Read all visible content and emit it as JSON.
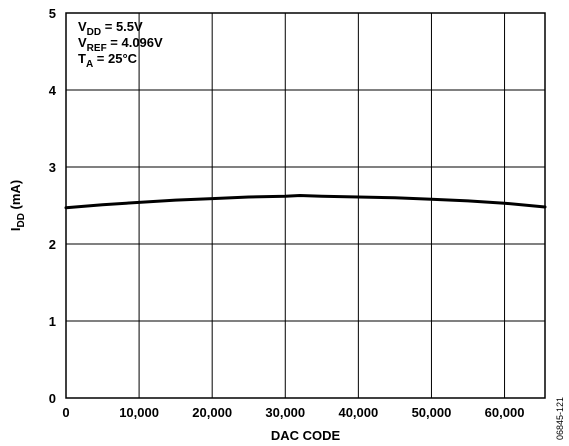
{
  "chart_data": {
    "type": "line",
    "xlabel": "DAC CODE",
    "ylabel": {
      "main": "I",
      "sub": "DD",
      "unit": " (mA)"
    },
    "xlim": [
      0,
      65535
    ],
    "ylim": [
      0,
      5
    ],
    "xticks": [
      {
        "value": 0,
        "label": "0"
      },
      {
        "value": 10000,
        "label": "10,000"
      },
      {
        "value": 20000,
        "label": "20,000"
      },
      {
        "value": 30000,
        "label": "30,000"
      },
      {
        "value": 40000,
        "label": "40,000"
      },
      {
        "value": 50000,
        "label": "50,000"
      },
      {
        "value": 60000,
        "label": "60,000"
      }
    ],
    "yticks": [
      {
        "value": 0,
        "label": "0"
      },
      {
        "value": 1,
        "label": "1"
      },
      {
        "value": 2,
        "label": "2"
      },
      {
        "value": 3,
        "label": "3"
      },
      {
        "value": 4,
        "label": "4"
      },
      {
        "value": 5,
        "label": "5"
      }
    ],
    "grid": true,
    "annotations": [
      {
        "main": "V",
        "sub": "DD",
        "rest": " = 5.5V"
      },
      {
        "main": "V",
        "sub": "REF",
        "rest": " = 4.096V"
      },
      {
        "main": "T",
        "sub": "A",
        "rest": " = 25°C"
      }
    ],
    "series": [
      {
        "x": [
          0,
          5000,
          10000,
          15000,
          20000,
          25000,
          30000,
          32000,
          35000,
          40000,
          45000,
          50000,
          55000,
          60000,
          65535
        ],
        "values": [
          2.47,
          2.51,
          2.54,
          2.57,
          2.59,
          2.61,
          2.62,
          2.63,
          2.62,
          2.61,
          2.6,
          2.58,
          2.56,
          2.53,
          2.48
        ]
      }
    ],
    "figure_id": "06845-121"
  }
}
